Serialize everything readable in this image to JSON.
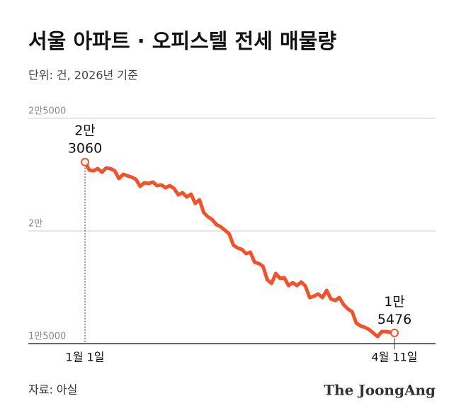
{
  "chart_data": {
    "type": "line",
    "title": "서울 아파트 · 오피스텔 전세 매물량",
    "subtitle": "단위: 건, 2026년 기준",
    "source": "자료: 아실",
    "brand": "The JoongAng",
    "color": "#f2522b",
    "grid": true,
    "ylim": [
      15000,
      25000
    ],
    "yticks": [
      {
        "value": 15000,
        "label": "1만5000"
      },
      {
        "value": 20000,
        "label": "2만"
      },
      {
        "value": 25000,
        "label": "2만5000"
      }
    ],
    "categories": [
      "1월 1일",
      null,
      null,
      null,
      null,
      null,
      null,
      null,
      null,
      null,
      null,
      null,
      null,
      null,
      null,
      null,
      null,
      null,
      null,
      null,
      null,
      null,
      null,
      null,
      null,
      null,
      null,
      null,
      null,
      null,
      null,
      null,
      null,
      null,
      null,
      null,
      null,
      null,
      null,
      null,
      null,
      null,
      null,
      null,
      null,
      null,
      null,
      null,
      null,
      null,
      null,
      null,
      null,
      null,
      null,
      null,
      null,
      null,
      null,
      null,
      null,
      null,
      null,
      null,
      null,
      null,
      null,
      null,
      null,
      null,
      null,
      null,
      null,
      "4월 11일"
    ],
    "values": [
      23060,
      22705,
      22674,
      22768,
      22611,
      22800,
      22768,
      22674,
      22328,
      22517,
      22454,
      22391,
      22296,
      21982,
      22139,
      22108,
      22171,
      22013,
      22045,
      21919,
      22013,
      21888,
      21605,
      21699,
      21510,
      21636,
      21227,
      21384,
      20818,
      20630,
      20504,
      20284,
      20189,
      20032,
      19875,
      19372,
      19246,
      19183,
      18994,
      19057,
      18617,
      18554,
      18428,
      17831,
      17673,
      18114,
      17893,
      17925,
      17579,
      17705,
      17579,
      17736,
      17547,
      17044,
      17107,
      17202,
      17044,
      17359,
      16981,
      16918,
      17044,
      16730,
      16541,
      16415,
      15912,
      15786,
      15723,
      15629,
      15472,
      15315,
      15535,
      15535,
      15503,
      15476
    ],
    "value_labels": [
      "2만 3060",
      null,
      null,
      null,
      null,
      null,
      null,
      null,
      null,
      null,
      null,
      null,
      null,
      null,
      null,
      null,
      null,
      null,
      null,
      null,
      null,
      null,
      null,
      null,
      null,
      null,
      null,
      null,
      null,
      null,
      null,
      null,
      null,
      null,
      null,
      null,
      null,
      null,
      null,
      null,
      null,
      null,
      null,
      null,
      null,
      null,
      null,
      null,
      null,
      null,
      null,
      null,
      null,
      null,
      null,
      null,
      null,
      null,
      null,
      null,
      null,
      null,
      null,
      null,
      null,
      null,
      null,
      null,
      null,
      null,
      null,
      null,
      null,
      "1만 5476"
    ]
  }
}
